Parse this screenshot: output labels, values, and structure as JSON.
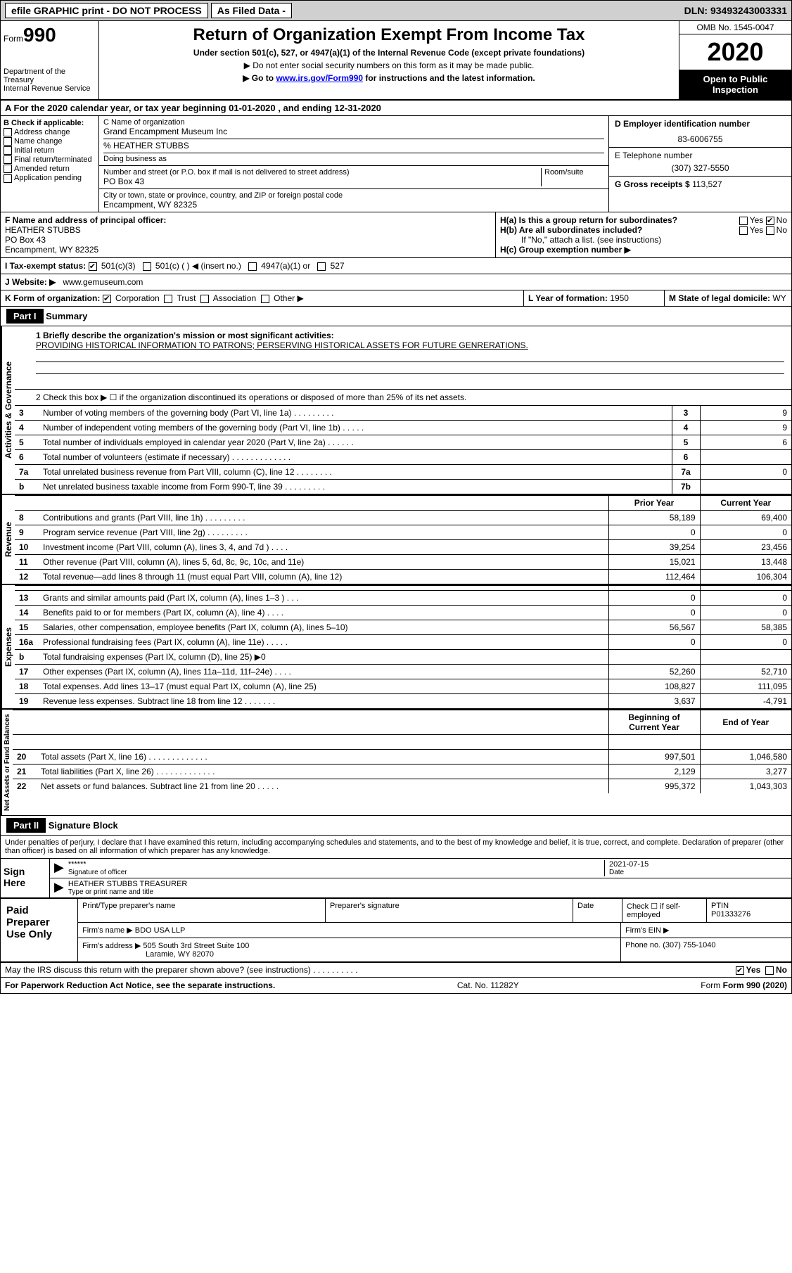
{
  "topbar": {
    "efile": "efile GRAPHIC print - DO NOT PROCESS",
    "filed": "As Filed Data -",
    "dln_label": "DLN:",
    "dln": "93493243003331"
  },
  "header": {
    "form_prefix": "Form",
    "form_no": "990",
    "dept": "Department of the Treasury",
    "irs": "Internal Revenue Service",
    "title": "Return of Organization Exempt From Income Tax",
    "subtitle": "Under section 501(c), 527, or 4947(a)(1) of the Internal Revenue Code (except private foundations)",
    "note1": "▶ Do not enter social security numbers on this form as it may be made public.",
    "note2_pre": "▶ Go to ",
    "note2_link": "www.irs.gov/Form990",
    "note2_post": " for instructions and the latest information.",
    "omb": "OMB No. 1545-0047",
    "year": "2020",
    "open": "Open to Public Inspection"
  },
  "rowA": "A   For the 2020 calendar year, or tax year beginning 01-01-2020   , and ending 12-31-2020",
  "b": {
    "title": "B Check if applicable:",
    "opts": [
      "Address change",
      "Name change",
      "Initial return",
      "Final return/terminated",
      "Amended return",
      "Application pending"
    ]
  },
  "c": {
    "label": "C Name of organization",
    "name": "Grand Encampment Museum Inc",
    "care_label": "% HEATHER STUBBS",
    "dba_label": "Doing business as",
    "addr_label": "Number and street (or P.O. box if mail is not delivered to street address)",
    "room_label": "Room/suite",
    "addr": "PO Box 43",
    "city_label": "City or town, state or province, country, and ZIP or foreign postal code",
    "city": "Encampment, WY  82325"
  },
  "d": {
    "label": "D Employer identification number",
    "value": "83-6006755"
  },
  "e": {
    "label": "E Telephone number",
    "value": "(307) 327-5550"
  },
  "g": {
    "label": "G Gross receipts $",
    "value": "113,527"
  },
  "f": {
    "label": "F  Name and address of principal officer:",
    "name": "HEATHER STUBBS",
    "addr1": "PO Box 43",
    "addr2": "Encampment, WY  82325"
  },
  "h": {
    "a_label": "H(a)  Is this a group return for subordinates?",
    "b_label": "H(b)  Are all subordinates included?",
    "note": "If \"No,\" attach a list. (see instructions)",
    "c_label": "H(c)  Group exemption number ▶",
    "yes": "Yes",
    "no": "No"
  },
  "i": {
    "label": "I   Tax-exempt status:",
    "o1": "501(c)(3)",
    "o2": "501(c) (   ) ◀ (insert no.)",
    "o3": "4947(a)(1) or",
    "o4": "527"
  },
  "j": {
    "label": "J   Website: ▶",
    "value": "www.gemuseum.com"
  },
  "k": {
    "label": "K Form of organization:",
    "opts": [
      "Corporation",
      "Trust",
      "Association",
      "Other ▶"
    ]
  },
  "l": {
    "label": "L Year of formation:",
    "value": "1950"
  },
  "m": {
    "label": "M State of legal domicile:",
    "value": "WY"
  },
  "part1": {
    "label": "Part I",
    "title": "Summary",
    "side_gov": "Activities & Governance",
    "side_rev": "Revenue",
    "side_exp": "Expenses",
    "side_net": "Net Assets or Fund Balances",
    "q1_label": "1 Briefly describe the organization's mission or most significant activities:",
    "mission": "PROVIDING HISTORICAL INFORMATION TO PATRONS; PERSERVING HISTORICAL ASSETS FOR FUTURE GENRERATIONS.",
    "q2": "2   Check this box ▶ ☐ if the organization discontinued its operations or disposed of more than 25% of its net assets.",
    "lines_gov": [
      {
        "n": "3",
        "d": "Number of voting members of the governing body (Part VI, line 1a)  .   .   .   .   .   .   .   .   .",
        "k": "3",
        "v": "9"
      },
      {
        "n": "4",
        "d": "Number of independent voting members of the governing body (Part VI, line 1b)   .   .   .   .   .",
        "k": "4",
        "v": "9"
      },
      {
        "n": "5",
        "d": "Total number of individuals employed in calendar year 2020 (Part V, line 2a)  .   .   .   .   .   .",
        "k": "5",
        "v": "6"
      },
      {
        "n": "6",
        "d": "Total number of volunteers (estimate if necessary)   .   .   .   .   .   .   .   .   .   .   .   .   .",
        "k": "6",
        "v": ""
      },
      {
        "n": "7a",
        "d": "Total unrelated business revenue from Part VIII, column (C), line 12   .   .   .   .   .   .   .   .",
        "k": "7a",
        "v": "0"
      },
      {
        "n": "b",
        "d": "Net unrelated business taxable income from Form 990-T, line 39   .   .   .   .   .   .   .   .   .",
        "k": "7b",
        "v": ""
      }
    ],
    "col_prior": "Prior Year",
    "col_current": "Current Year",
    "lines_rev": [
      {
        "n": "8",
        "d": "Contributions and grants (Part VIII, line 1h)   .   .   .   .   .   .   .   .   .",
        "p": "58,189",
        "c": "69,400"
      },
      {
        "n": "9",
        "d": "Program service revenue (Part VIII, line 2g)   .   .   .   .   .   .   .   .   .",
        "p": "0",
        "c": "0"
      },
      {
        "n": "10",
        "d": "Investment income (Part VIII, column (A), lines 3, 4, and 7d )   .   .   .   .",
        "p": "39,254",
        "c": "23,456"
      },
      {
        "n": "11",
        "d": "Other revenue (Part VIII, column (A), lines 5, 6d, 8c, 9c, 10c, and 11e)",
        "p": "15,021",
        "c": "13,448"
      },
      {
        "n": "12",
        "d": "Total revenue—add lines 8 through 11 (must equal Part VIII, column (A), line 12)",
        "p": "112,464",
        "c": "106,304"
      }
    ],
    "lines_exp": [
      {
        "n": "13",
        "d": "Grants and similar amounts paid (Part IX, column (A), lines 1–3 )  .   .   .",
        "p": "0",
        "c": "0"
      },
      {
        "n": "14",
        "d": "Benefits paid to or for members (Part IX, column (A), line 4)   .   .   .   .",
        "p": "0",
        "c": "0"
      },
      {
        "n": "15",
        "d": "Salaries, other compensation, employee benefits (Part IX, column (A), lines 5–10)",
        "p": "56,567",
        "c": "58,385"
      },
      {
        "n": "16a",
        "d": "Professional fundraising fees (Part IX, column (A), line 11e)   .   .   .   .   .",
        "p": "0",
        "c": "0"
      },
      {
        "n": "b",
        "d": "Total fundraising expenses (Part IX, column (D), line 25) ▶0",
        "p": "",
        "c": ""
      },
      {
        "n": "17",
        "d": "Other expenses (Part IX, column (A), lines 11a–11d, 11f–24e)  .   .   .   .",
        "p": "52,260",
        "c": "52,710"
      },
      {
        "n": "18",
        "d": "Total expenses. Add lines 13–17 (must equal Part IX, column (A), line 25)",
        "p": "108,827",
        "c": "111,095"
      },
      {
        "n": "19",
        "d": "Revenue less expenses. Subtract line 18 from line 12 .   .   .   .   .   .   .",
        "p": "3,637",
        "c": "-4,791"
      }
    ],
    "col_begin": "Beginning of Current Year",
    "col_end": "End of Year",
    "lines_net": [
      {
        "n": "20",
        "d": "Total assets (Part X, line 16)   .   .   .   .   .   .   .   .   .   .   .   .   .",
        "p": "997,501",
        "c": "1,046,580"
      },
      {
        "n": "21",
        "d": "Total liabilities (Part X, line 26) .   .   .   .   .   .   .   .   .   .   .   .   .",
        "p": "2,129",
        "c": "3,277"
      },
      {
        "n": "22",
        "d": "Net assets or fund balances. Subtract line 21 from line 20 .   .   .   .   .",
        "p": "995,372",
        "c": "1,043,303"
      }
    ]
  },
  "part2": {
    "label": "Part II",
    "title": "Signature Block",
    "perjury": "Under penalties of perjury, I declare that I have examined this return, including accompanying schedules and statements, and to the best of my knowledge and belief, it is true, correct, and complete. Declaration of preparer (other than officer) is based on all information of which preparer has any knowledge.",
    "sign_here": "Sign Here",
    "sig_stars": "******",
    "sig_of_officer": "Signature of officer",
    "sig_date": "2021-07-15",
    "date_label": "Date",
    "name_title": "HEATHER STUBBS TREASURER",
    "type_label": "Type or print name and title",
    "paid": "Paid Preparer Use Only",
    "print_label": "Print/Type preparer's name",
    "prep_sig_label": "Preparer's signature",
    "check_label": "Check ☐ if self-employed",
    "ptin_label": "PTIN",
    "ptin": "P01333276",
    "firm_name_label": "Firm's name   ▶",
    "firm_name": "BDO USA LLP",
    "firm_ein_label": "Firm's EIN ▶",
    "firm_addr_label": "Firm's address ▶",
    "firm_addr": "505 South 3rd Street Suite 100",
    "firm_city": "Laramie, WY  82070",
    "phone_label": "Phone no.",
    "phone": "(307) 755-1040",
    "discuss": "May the IRS discuss this return with the preparer shown above? (see instructions)   .   .   .   .   .   .   .   .   .   .",
    "yes": "Yes",
    "no": "No"
  },
  "footer": {
    "paperwork": "For Paperwork Reduction Act Notice, see the separate instructions.",
    "cat": "Cat. No. 11282Y",
    "form": "Form 990 (2020)"
  }
}
